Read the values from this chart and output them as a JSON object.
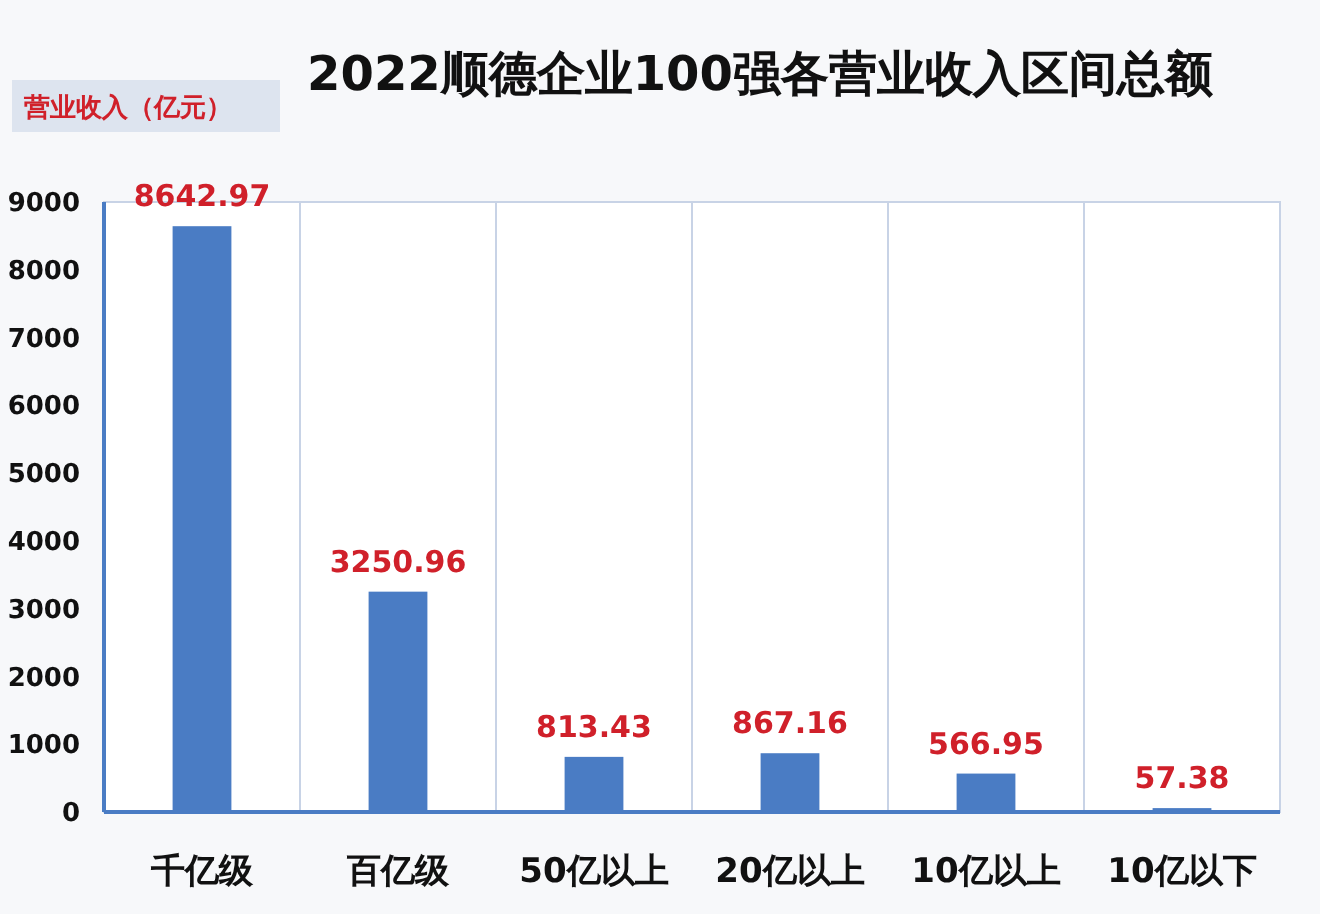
{
  "chart_data": {
    "type": "bar",
    "title": "2022顺德企业100强各营业收入区间总额",
    "ylabel": "营业收入（亿元）",
    "categories": [
      "千亿级",
      "百亿级",
      "50亿以上",
      "20亿以上",
      "10亿以上",
      "10亿以下"
    ],
    "values": [
      8642.97,
      3250.96,
      813.43,
      867.16,
      566.95,
      57.38
    ],
    "color": "#4a7cc4",
    "ylim": [
      0,
      9000
    ],
    "yticks": [
      0,
      1000,
      2000,
      3000,
      4000,
      5000,
      6000,
      7000,
      8000,
      9000
    ],
    "grid": "x",
    "data_labels": true
  }
}
